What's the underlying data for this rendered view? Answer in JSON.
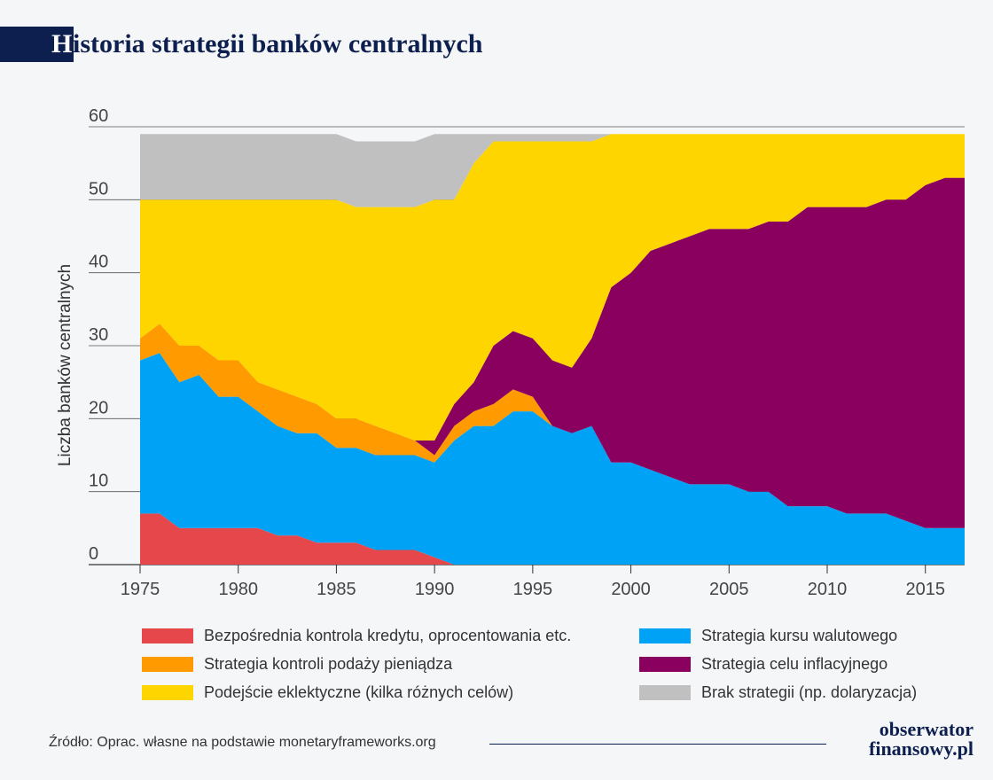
{
  "header": {
    "title_initial": "H",
    "title_rest": "istoria strategii banków centralnych"
  },
  "chart_data": {
    "type": "area",
    "stacked": true,
    "title": "Historia strategii banków centralnych",
    "ylabel": "Liczba banków centralnych",
    "xlabel": "",
    "ylim": [
      0,
      60
    ],
    "xlim": [
      1975,
      2017
    ],
    "x_ticks": [
      "1975",
      "1980",
      "1985",
      "1990",
      "1995",
      "2000",
      "2005",
      "2010",
      "2015"
    ],
    "y_ticks": [
      "0",
      "10",
      "20",
      "30",
      "40",
      "50",
      "60"
    ],
    "grid": "horizontal",
    "legend_position": "bottom",
    "x": [
      1975,
      1976,
      1977,
      1978,
      1979,
      1980,
      1981,
      1982,
      1983,
      1984,
      1985,
      1986,
      1987,
      1988,
      1989,
      1990,
      1991,
      1992,
      1993,
      1994,
      1995,
      1996,
      1997,
      1998,
      1999,
      2000,
      2001,
      2002,
      2003,
      2004,
      2005,
      2006,
      2007,
      2008,
      2009,
      2010,
      2011,
      2012,
      2013,
      2014,
      2015,
      2016,
      2017
    ],
    "series": [
      {
        "name": "Bezpośrednia kontrola kredytu, oprocentowania etc.",
        "color": "#e5474b",
        "values": [
          7,
          7,
          5,
          5,
          5,
          5,
          5,
          4,
          4,
          3,
          3,
          3,
          2,
          2,
          2,
          1,
          0,
          0,
          0,
          0,
          0,
          0,
          0,
          0,
          0,
          0,
          0,
          0,
          0,
          0,
          0,
          0,
          0,
          0,
          0,
          0,
          0,
          0,
          0,
          0,
          0,
          0,
          0
        ]
      },
      {
        "name": "Strategia kursu walutowego",
        "color": "#00a2f5",
        "values": [
          21,
          22,
          20,
          21,
          18,
          18,
          16,
          15,
          14,
          15,
          13,
          13,
          13,
          13,
          13,
          13,
          17,
          19,
          19,
          21,
          21,
          19,
          18,
          19,
          14,
          14,
          13,
          12,
          11,
          11,
          11,
          10,
          10,
          8,
          8,
          8,
          7,
          7,
          7,
          6,
          5,
          5,
          5
        ]
      },
      {
        "name": "Strategia kontroli podaży pieniądza",
        "color": "#ff9a00",
        "values": [
          3,
          4,
          5,
          4,
          5,
          5,
          4,
          5,
          5,
          4,
          4,
          4,
          4,
          3,
          2,
          1,
          2,
          2,
          3,
          3,
          2,
          0,
          0,
          0,
          0,
          0,
          0,
          0,
          0,
          0,
          0,
          0,
          0,
          0,
          0,
          0,
          0,
          0,
          0,
          0,
          0,
          0,
          0
        ]
      },
      {
        "name": "Strategia celu inflacyjnego",
        "color": "#8a005e",
        "values": [
          0,
          0,
          0,
          0,
          0,
          0,
          0,
          0,
          0,
          0,
          0,
          0,
          0,
          0,
          0,
          2,
          3,
          4,
          8,
          8,
          8,
          9,
          9,
          12,
          24,
          26,
          30,
          32,
          34,
          35,
          35,
          36,
          37,
          39,
          41,
          41,
          42,
          42,
          43,
          44,
          47,
          48,
          48
        ]
      },
      {
        "name": "Podejście eklektyczne (kilka różnych celów)",
        "color": "#ffd500",
        "values": [
          19,
          17,
          20,
          20,
          22,
          22,
          25,
          26,
          27,
          28,
          30,
          29,
          30,
          31,
          32,
          33,
          28,
          30,
          28,
          26,
          27,
          30,
          31,
          27,
          21,
          19,
          16,
          15,
          14,
          13,
          13,
          13,
          12,
          12,
          10,
          10,
          10,
          10,
          9,
          9,
          7,
          6,
          6
        ]
      },
      {
        "name": "Brak strategii (np. dolaryzacja)",
        "color": "#c0c0c0",
        "values": [
          9,
          9,
          9,
          9,
          9,
          9,
          9,
          9,
          9,
          9,
          9,
          9,
          9,
          9,
          9,
          9,
          9,
          4,
          1,
          1,
          1,
          1,
          1,
          1,
          0,
          0,
          0,
          0,
          0,
          0,
          0,
          0,
          0,
          0,
          0,
          0,
          0,
          0,
          0,
          0,
          0,
          0,
          0
        ]
      }
    ]
  },
  "source": "Źródło: Oprac. własne na podstawie monetaryframeworks.org",
  "brand": {
    "line1": "obserwator",
    "line2": "finansowy.pl"
  }
}
